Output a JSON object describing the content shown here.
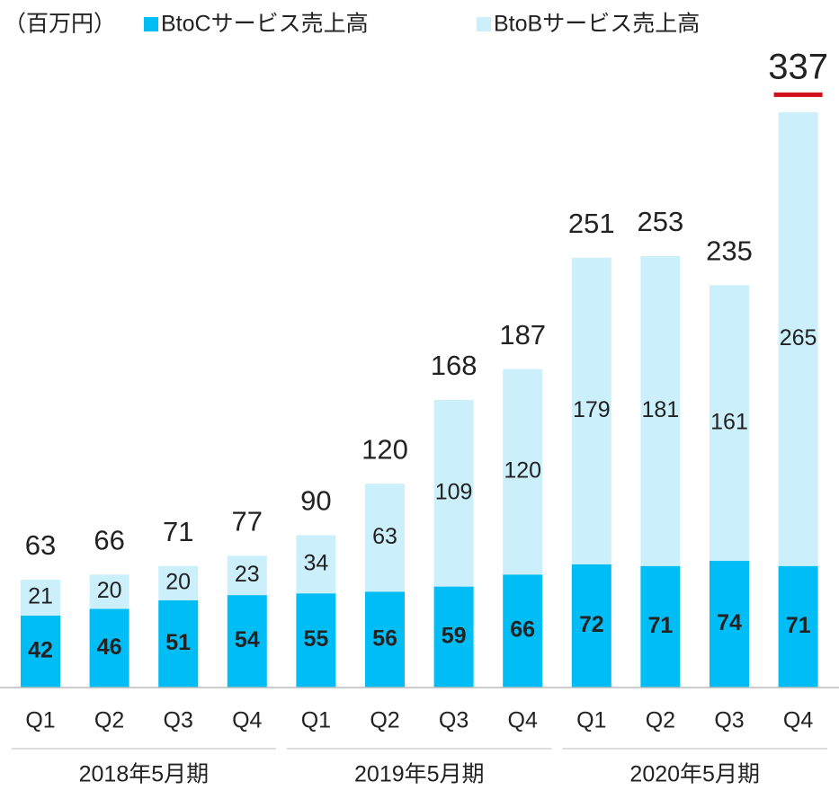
{
  "chart_data": {
    "type": "stacked_bar",
    "unit_label": "（百万円）",
    "categories": [
      "Q1",
      "Q2",
      "Q3",
      "Q4",
      "Q1",
      "Q2",
      "Q3",
      "Q4",
      "Q1",
      "Q2",
      "Q3",
      "Q4"
    ],
    "groups": [
      "2018年5月期",
      "2019年5月期",
      "2020年5月期"
    ],
    "series": [
      {
        "name": "BtoCサービス売上高",
        "color": "#00bdf6",
        "values": [
          42,
          46,
          51,
          54,
          55,
          56,
          59,
          66,
          72,
          71,
          74,
          71
        ]
      },
      {
        "name": "BtoBサービス売上高",
        "color": "#ccf0fb",
        "values": [
          21,
          20,
          20,
          23,
          34,
          63,
          109,
          120,
          179,
          181,
          161,
          265
        ]
      }
    ],
    "totals": [
      63,
      66,
      71,
      77,
      90,
      120,
      168,
      187,
      251,
      253,
      235,
      337
    ]
  }
}
